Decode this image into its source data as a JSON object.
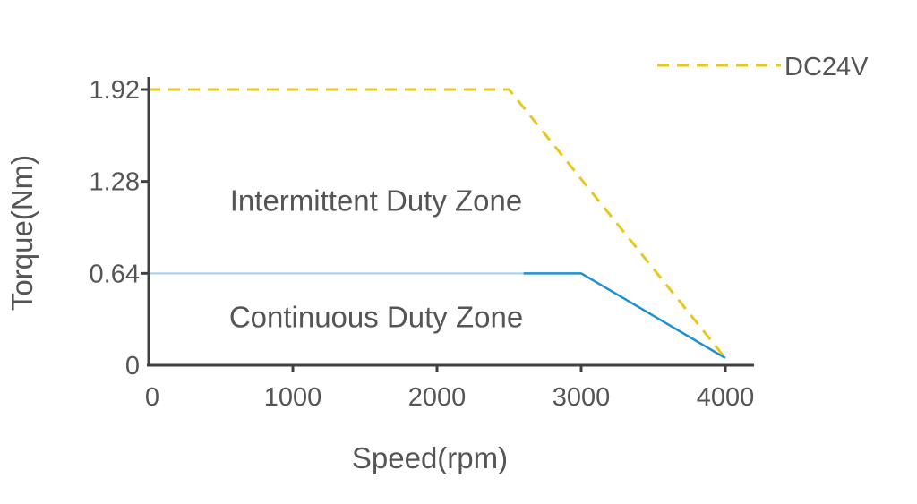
{
  "chart_data": {
    "type": "line",
    "xlabel": "Speed(rpm)",
    "ylabel": "Torque(Nm)",
    "xlim": [
      0,
      4000
    ],
    "ylim": [
      0,
      1.92
    ],
    "x_ticks": [
      0,
      1000,
      2000,
      3000,
      4000
    ],
    "x_tick_labels": [
      "0",
      "1000",
      "2000",
      "3000",
      "4000"
    ],
    "y_ticks": [
      0,
      0.64,
      1.28,
      1.92
    ],
    "y_tick_labels": [
      "0",
      "0.64",
      "1.28",
      "1.92"
    ],
    "grid": false,
    "legend_position": "top-right",
    "series": [
      {
        "name": "DC24V",
        "style": "dashed",
        "color": "#e8c81e",
        "points": [
          [
            0,
            1.92
          ],
          [
            2500,
            1.92
          ],
          [
            4000,
            0.05
          ]
        ]
      },
      {
        "style": "solid",
        "color": "#1e90d0",
        "faded_color": "#9fd0ec",
        "faded_until": 2600,
        "points": [
          [
            0,
            0.64
          ],
          [
            3000,
            0.64
          ],
          [
            4000,
            0.05
          ]
        ]
      }
    ],
    "annotations": [
      {
        "text": "Intermittent Duty Zone",
        "x": 1650,
        "y": 1.15
      },
      {
        "text": "Continuous Duty Zone",
        "x": 1650,
        "y": 0.34
      }
    ],
    "axis_color": "#404040"
  }
}
